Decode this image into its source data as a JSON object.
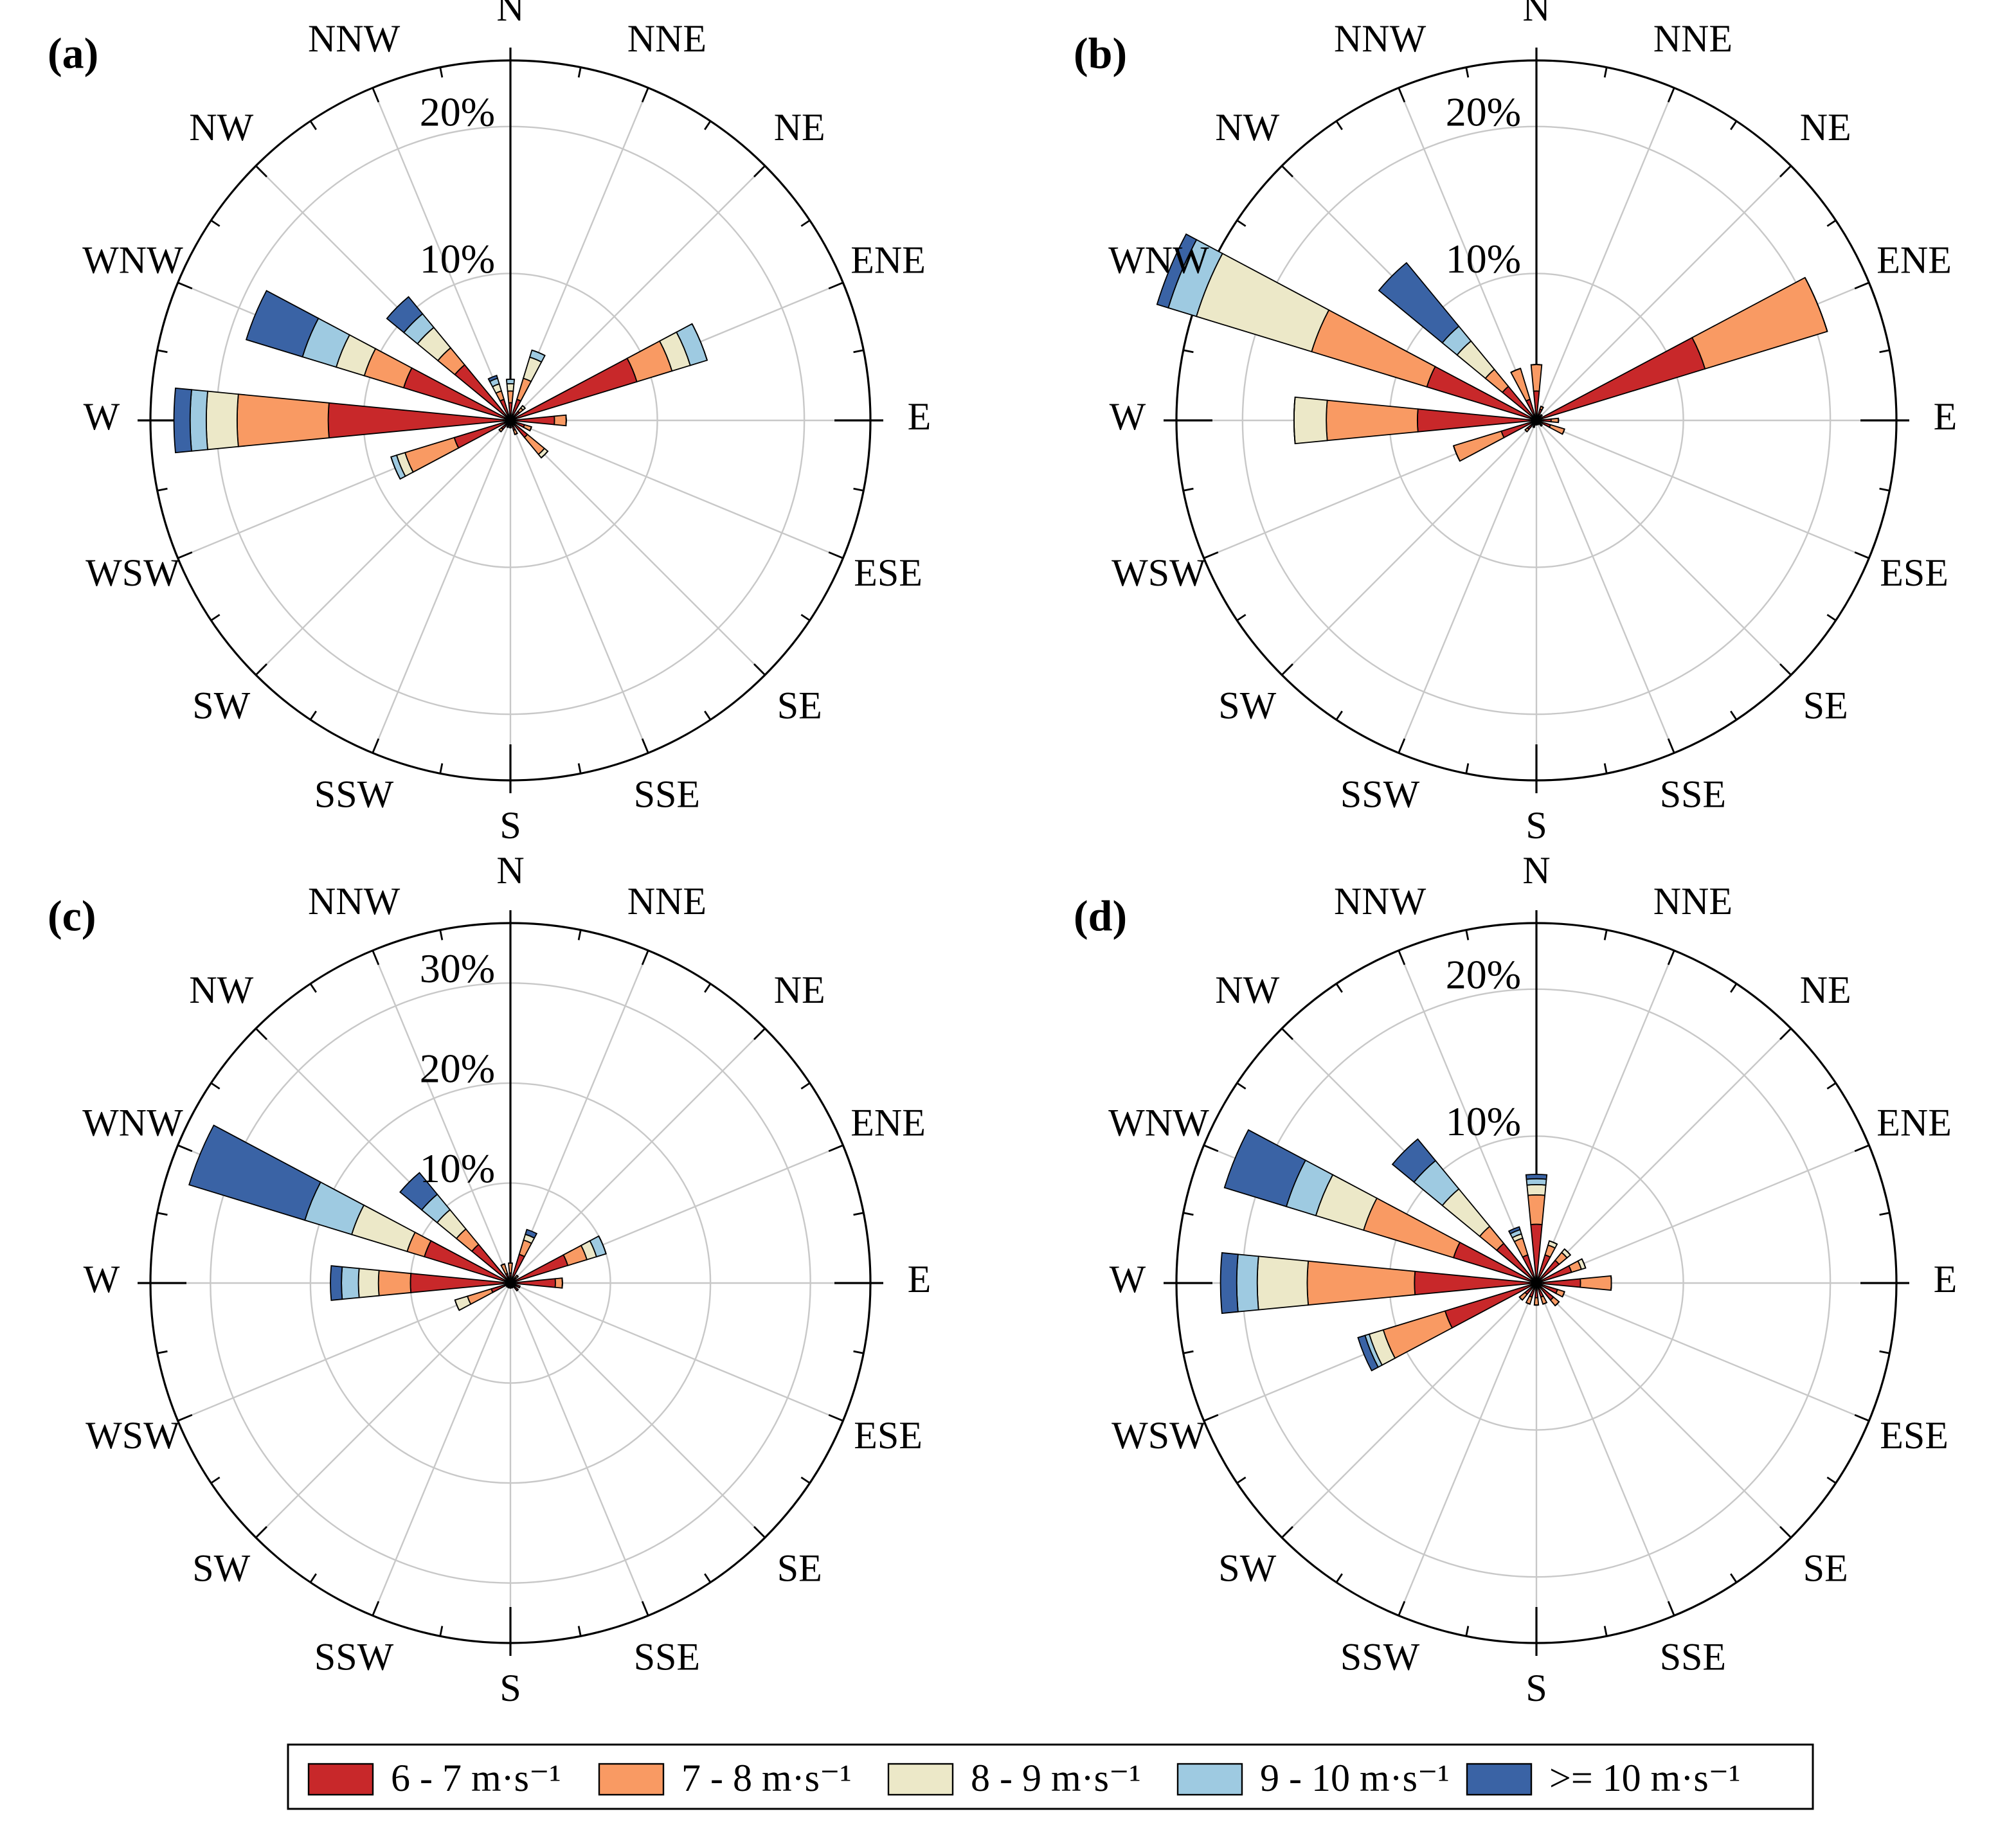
{
  "chart_data": [
    {
      "type": "wind_rose",
      "title": "(a)",
      "categories": [
        "N",
        "NNE",
        "NE",
        "ENE",
        "E",
        "ESE",
        "SE",
        "SSE",
        "S",
        "SSW",
        "SW",
        "WSW",
        "W",
        "WNW",
        "NW",
        "NNW"
      ],
      "ylim": [
        0,
        24.5
      ],
      "yticks": [
        {
          "value": 10,
          "label": "10%"
        },
        {
          "value": 20,
          "label": "20%"
        }
      ],
      "series": [
        {
          "name": "6 - 7 m·s⁻¹",
          "color": "#c8282a",
          "values": [
            1.2,
            1.5,
            0.8,
            9,
            3,
            1,
            1.5,
            0.7,
            0.5,
            0.5,
            0.8,
            4,
            12.4,
            7.6,
            4.9,
            1.5
          ]
        },
        {
          "name": "7 - 8 m·s⁻¹",
          "color": "#f99a63",
          "values": [
            0.8,
            1.5,
            0.3,
            2.5,
            0.8,
            0.5,
            1.5,
            0.3,
            0,
            0,
            0.2,
            3.5,
            6.2,
            2.8,
            1.5,
            0.6
          ]
        },
        {
          "name": "8 - 9 m·s⁻¹",
          "color": "#ece8c8",
          "values": [
            0.5,
            1.5,
            0.2,
            1.3,
            0,
            0,
            0.3,
            0,
            0,
            0,
            0,
            0.6,
            2.1,
            2,
            1.8,
            0.5
          ]
        },
        {
          "name": "9 - 10 m·s⁻¹",
          "color": "#9ecae1",
          "values": [
            0.3,
            0.5,
            0,
            1.2,
            0,
            0,
            0,
            0,
            0,
            0,
            0,
            0.4,
            1.1,
            2.4,
            1.2,
            0.4
          ]
        },
        {
          "name": ">= 10 m·s⁻¹",
          "color": "#3a63a5",
          "values": [
            0,
            0,
            0,
            0,
            0,
            0,
            0,
            0,
            0,
            0,
            0,
            0,
            1.1,
            4,
            1.5,
            0.2
          ]
        }
      ]
    },
    {
      "type": "wind_rose",
      "title": "(b)",
      "categories": [
        "N",
        "NNE",
        "NE",
        "ENE",
        "E",
        "ESE",
        "SE",
        "SSE",
        "S",
        "SSW",
        "SW",
        "WSW",
        "W",
        "WNW",
        "NW",
        "NNW"
      ],
      "ylim": [
        0,
        24.5
      ],
      "yticks": [
        {
          "value": 10,
          "label": "10%"
        },
        {
          "value": 20,
          "label": "20%"
        }
      ],
      "series": [
        {
          "values": [
            2,
            0.8,
            0.5,
            12,
            1,
            1,
            0.5,
            0.3,
            0.3,
            0.5,
            0.8,
            2.5,
            8.1,
            7.8,
            3,
            1.5
          ]
        },
        {
          "values": [
            1.8,
            0.2,
            0,
            8.7,
            0.5,
            1,
            0,
            0,
            0,
            0,
            0.2,
            3.4,
            6.2,
            8.2,
            1.5,
            2.2
          ]
        },
        {
          "values": [
            0,
            0,
            0,
            0,
            0,
            0,
            0,
            0,
            0,
            0,
            0,
            0,
            2.2,
            8.2,
            2.5,
            0
          ]
        },
        {
          "values": [
            0,
            0,
            0,
            0,
            0,
            0,
            0,
            0,
            0,
            0,
            0,
            0,
            0,
            2,
            1.3,
            0
          ]
        },
        {
          "values": [
            0,
            0,
            0,
            0,
            0,
            0,
            0,
            0,
            0,
            0,
            0,
            0,
            0,
            0.8,
            5.6,
            0
          ]
        }
      ]
    },
    {
      "type": "wind_rose",
      "title": "(c)",
      "categories": [
        "N",
        "NNE",
        "NE",
        "ENE",
        "E",
        "ESE",
        "SE",
        "SSE",
        "S",
        "SSW",
        "SW",
        "WSW",
        "W",
        "WNW",
        "NW",
        "NNW"
      ],
      "ylim": [
        0,
        36
      ],
      "yticks": [
        {
          "value": 10,
          "label": "10%"
        },
        {
          "value": 20,
          "label": "20%"
        },
        {
          "value": 30,
          "label": "30%"
        }
      ],
      "series": [
        {
          "values": [
            1,
            3,
            0.7,
            6,
            4.5,
            1,
            1,
            0.5,
            0.5,
            0.5,
            0.5,
            2,
            10,
            9,
            5,
            1
          ]
        },
        {
          "values": [
            1,
            1.5,
            0.3,
            2,
            0.7,
            0,
            0,
            0,
            0,
            0,
            0,
            2.5,
            3.2,
            1.8,
            2,
            1
          ]
        },
        {
          "values": [
            0,
            0.6,
            0,
            1,
            0,
            0,
            0,
            0,
            0,
            0,
            0,
            1.3,
            2,
            5.8,
            2.5,
            0
          ]
        },
        {
          "values": [
            0,
            0,
            0,
            1,
            0,
            0,
            0,
            0,
            0,
            0,
            0,
            0,
            1.7,
            4.9,
            2,
            0
          ]
        },
        {
          "values": [
            0,
            0.5,
            0,
            0,
            0,
            0,
            0,
            0,
            0,
            0,
            0,
            0,
            1.1,
            12.1,
            2.8,
            0
          ]
        }
      ]
    },
    {
      "type": "wind_rose",
      "title": "(d)",
      "categories": [
        "N",
        "NNE",
        "NE",
        "ENE",
        "E",
        "ESE",
        "SE",
        "SSE",
        "S",
        "SSW",
        "SW",
        "WSW",
        "W",
        "WNW",
        "NW",
        "NNW"
      ],
      "ylim": [
        0,
        24.5
      ],
      "yticks": [
        {
          "value": 10,
          "label": "10%"
        },
        {
          "value": 20,
          "label": "20%"
        }
      ],
      "series": [
        {
          "values": [
            4,
            2,
            2,
            2.5,
            3,
            1.5,
            1.5,
            1,
            1,
            1,
            1,
            6.5,
            8.3,
            5.9,
            3.5,
            2
          ]
        },
        {
          "values": [
            2,
            0.7,
            0.7,
            0.7,
            2.1,
            0.5,
            0.5,
            0.5,
            0.5,
            0.5,
            0.5,
            4.4,
            7.3,
            6.4,
            1.5,
            1.2
          ]
        },
        {
          "values": [
            0.7,
            0.3,
            0.3,
            0.3,
            0,
            0,
            0,
            0,
            0,
            0,
            0,
            1,
            3.4,
            3.4,
            3.3,
            0.3
          ]
        },
        {
          "values": [
            0.4,
            0,
            0,
            0,
            0,
            0,
            0,
            0,
            0,
            0,
            0,
            0.3,
            1.4,
            2.1,
            2.5,
            0.3
          ]
        },
        {
          "values": [
            0.3,
            0,
            0,
            0,
            0,
            0,
            0,
            0,
            0,
            0,
            0,
            0.5,
            1.1,
            4.4,
            1.9,
            0.2
          ]
        }
      ]
    }
  ]
}
